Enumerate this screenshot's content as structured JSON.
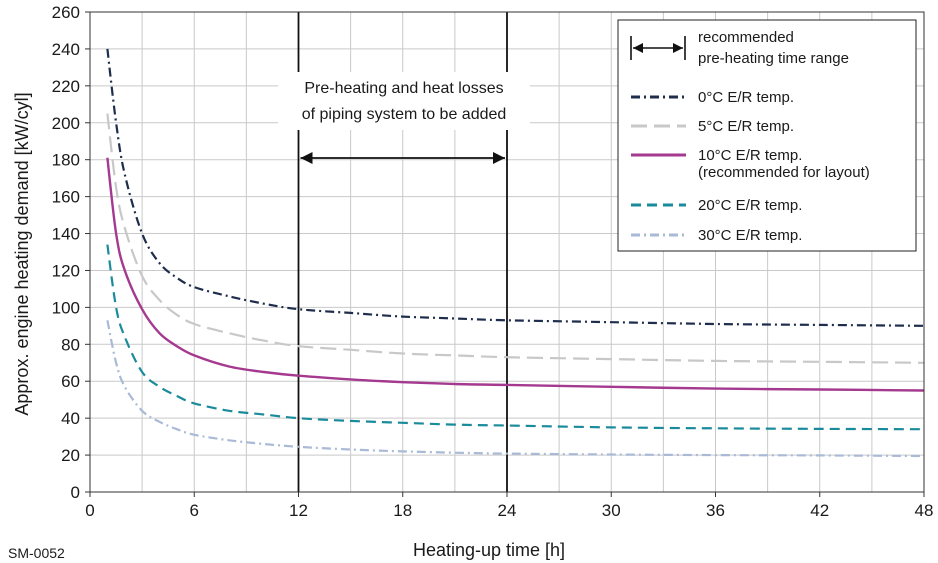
{
  "chart_data": {
    "type": "line",
    "title": "",
    "xlabel": "Heating-up time [h]",
    "ylabel": "Approx. engine heating demand [kW/cyl]",
    "xlim": [
      0,
      48
    ],
    "ylim": [
      0,
      260
    ],
    "xticks": [
      0,
      6,
      12,
      18,
      24,
      30,
      36,
      42,
      48
    ],
    "yticks": [
      0,
      20,
      40,
      60,
      80,
      100,
      120,
      140,
      160,
      180,
      200,
      220,
      240,
      260
    ],
    "grid": true,
    "legend_position": "top-right",
    "series": [
      {
        "name": "0°C E/R temp.",
        "color": "#1f2d4d",
        "dash": "dashdot",
        "x": [
          1,
          1.5,
          2,
          3,
          4,
          5,
          6,
          8,
          10,
          12,
          15,
          18,
          21,
          24,
          30,
          36,
          42,
          48
        ],
        "y": [
          240,
          200,
          172,
          140,
          124,
          116,
          111,
          106,
          102,
          99,
          97,
          95,
          94,
          93,
          92,
          91,
          90.5,
          90
        ]
      },
      {
        "name": "5°C E/R temp.",
        "color": "#c8c8c8",
        "dash": "longdash",
        "x": [
          1,
          1.5,
          2,
          3,
          4,
          5,
          6,
          8,
          10,
          12,
          15,
          18,
          21,
          24,
          30,
          36,
          42,
          48
        ],
        "y": [
          205,
          165,
          143,
          117,
          104,
          96,
          91,
          86,
          82,
          79,
          77,
          75,
          74,
          73,
          72,
          71,
          70.5,
          70
        ]
      },
      {
        "name": "10°C E/R temp.",
        "color": "#a4398f",
        "dash": "solid",
        "x": [
          1,
          1.5,
          2,
          3,
          4,
          5,
          6,
          8,
          10,
          12,
          15,
          18,
          21,
          24,
          30,
          36,
          42,
          48
        ],
        "y": [
          181,
          140,
          120,
          99,
          86,
          79,
          74,
          68,
          65,
          63,
          61,
          59.5,
          58.5,
          58,
          57,
          56,
          55.5,
          55
        ]
      },
      {
        "name": "20°C E/R temp.",
        "color": "#1a8b9b",
        "dash": "dashed",
        "x": [
          1,
          1.5,
          2,
          3,
          4,
          5,
          6,
          8,
          10,
          12,
          15,
          18,
          21,
          24,
          30,
          36,
          42,
          48
        ],
        "y": [
          134,
          100,
          84,
          65,
          57,
          52,
          48,
          44,
          42,
          40,
          38.5,
          37.5,
          36.5,
          36,
          35,
          34.5,
          34.2,
          34
        ]
      },
      {
        "name": "30°C E/R temp.",
        "color": "#a9bad6",
        "dash": "dashdot",
        "x": [
          1,
          1.5,
          2,
          3,
          4,
          5,
          6,
          8,
          10,
          12,
          15,
          18,
          21,
          24,
          30,
          36,
          42,
          48
        ],
        "y": [
          93,
          70,
          57,
          44,
          38,
          34,
          31,
          28,
          26,
          24.5,
          23,
          22,
          21.3,
          20.8,
          20.3,
          20,
          19.8,
          19.5
        ]
      }
    ],
    "recommended_range": {
      "x": [
        12,
        24
      ],
      "legend_label_line1": "recommended",
      "legend_label_line2": "pre-heating time range"
    },
    "annotation": {
      "line1": "Pre-heating and heat losses",
      "line2": "of piping system to be added"
    },
    "legend_extra_line": "(recommended for layout)",
    "code": "SM-0052"
  }
}
